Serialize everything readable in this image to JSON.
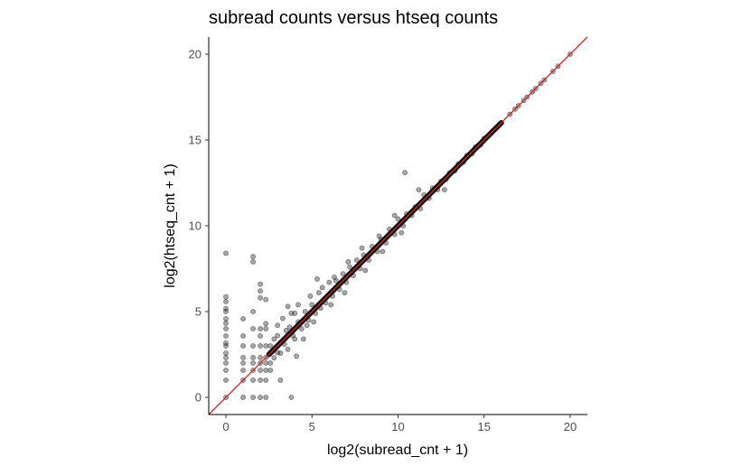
{
  "chart_data": {
    "type": "scatter",
    "title": "subread counts versus htseq counts",
    "xlabel": "log2(subread_cnt + 1)",
    "ylabel": "log2(htseq_cnt + 1)",
    "xlim": [
      -1,
      21
    ],
    "ylim": [
      -1,
      21
    ],
    "xticks": [
      0,
      5,
      10,
      15,
      20
    ],
    "yticks": [
      0,
      5,
      10,
      15,
      20
    ],
    "grid": false,
    "point_color": "#000000",
    "point_opacity": 0.35,
    "reference_line": {
      "slope": 1,
      "intercept": 0,
      "color": "#d62728"
    },
    "points": [
      [
        0,
        0
      ],
      [
        0,
        1
      ],
      [
        0,
        1.58
      ],
      [
        0,
        2
      ],
      [
        0,
        2.32
      ],
      [
        0,
        2.58
      ],
      [
        0,
        3
      ],
      [
        0,
        3.17
      ],
      [
        0,
        3.58
      ],
      [
        0,
        4
      ],
      [
        0,
        4.32
      ],
      [
        0,
        4.58
      ],
      [
        0,
        5
      ],
      [
        0,
        5.17
      ],
      [
        0,
        5.58
      ],
      [
        0,
        5.86
      ],
      [
        0,
        8.4
      ],
      [
        1,
        0
      ],
      [
        1,
        1
      ],
      [
        1,
        1.58
      ],
      [
        1,
        2
      ],
      [
        1,
        2.32
      ],
      [
        1,
        3
      ],
      [
        1,
        3.58
      ],
      [
        1,
        4.58
      ],
      [
        1.58,
        0
      ],
      [
        1.58,
        1
      ],
      [
        1.58,
        1.58
      ],
      [
        1.58,
        2
      ],
      [
        1.58,
        2.32
      ],
      [
        1.58,
        3
      ],
      [
        1.58,
        4
      ],
      [
        1.58,
        8.2
      ],
      [
        1.58,
        7.9
      ],
      [
        1.58,
        5
      ],
      [
        2,
        0
      ],
      [
        2,
        1
      ],
      [
        2,
        1.58
      ],
      [
        2,
        2
      ],
      [
        2,
        2.32
      ],
      [
        2,
        3
      ],
      [
        2,
        3.58
      ],
      [
        2,
        4
      ],
      [
        2,
        6.2
      ],
      [
        2,
        6.6
      ],
      [
        2,
        5.8
      ],
      [
        2.32,
        0
      ],
      [
        2.32,
        1
      ],
      [
        2.32,
        1.58
      ],
      [
        2.32,
        2
      ],
      [
        2.32,
        2.32
      ],
      [
        2.32,
        3
      ],
      [
        2.32,
        4
      ],
      [
        2.32,
        5.7
      ],
      [
        2.32,
        4.3
      ],
      [
        2.58,
        1.58
      ],
      [
        2.58,
        2
      ],
      [
        2.58,
        2.58
      ],
      [
        2.58,
        3
      ],
      [
        2.8,
        2.3
      ],
      [
        2.8,
        3.4
      ],
      [
        3,
        2.6
      ],
      [
        3,
        3
      ],
      [
        3,
        3.6
      ],
      [
        3,
        4.2
      ],
      [
        3.17,
        1
      ],
      [
        3.17,
        2.58
      ],
      [
        3.17,
        3.2
      ],
      [
        3.3,
        4.6
      ],
      [
        3.4,
        3.1
      ],
      [
        3.5,
        3.9
      ],
      [
        3.6,
        2.8
      ],
      [
        3.7,
        4.1
      ],
      [
        3.9,
        3.6
      ],
      [
        4,
        3.4
      ],
      [
        4,
        4.9
      ],
      [
        3.8,
        0
      ],
      [
        4.1,
        2.4
      ],
      [
        4.2,
        4.4
      ],
      [
        4.4,
        4
      ],
      [
        4.6,
        5
      ],
      [
        4.8,
        4.5
      ],
      [
        5,
        5.4
      ],
      [
        5.2,
        4.9
      ],
      [
        5.4,
        6.1
      ],
      [
        5.5,
        5.2
      ],
      [
        5.8,
        5.5
      ],
      [
        6,
        6.7
      ],
      [
        6.2,
        5.9
      ],
      [
        6.4,
        6.8
      ],
      [
        6.6,
        6.3
      ],
      [
        6.8,
        7.2
      ],
      [
        7,
        6.7
      ],
      [
        7.2,
        7.6
      ],
      [
        7.4,
        7.1
      ],
      [
        7.6,
        8
      ],
      [
        7.8,
        7.5
      ],
      [
        8,
        8.3
      ],
      [
        8.3,
        8
      ],
      [
        8.5,
        8.8
      ],
      [
        8.8,
        8.5
      ],
      [
        9,
        9.2
      ],
      [
        9.3,
        9
      ],
      [
        9.5,
        9.8
      ],
      [
        9.8,
        9.5
      ],
      [
        10,
        10.4
      ],
      [
        10.3,
        10
      ],
      [
        10.5,
        10.7
      ],
      [
        10.8,
        10.6
      ],
      [
        11,
        11.1
      ],
      [
        11.3,
        11
      ],
      [
        11.5,
        11.8
      ],
      [
        11.8,
        11.6
      ],
      [
        12,
        12.2
      ],
      [
        12.3,
        12.1
      ],
      [
        12.5,
        12.6
      ],
      [
        12.8,
        12.7
      ],
      [
        13,
        13.1
      ],
      [
        13.3,
        13.2
      ],
      [
        13.5,
        13.6
      ],
      [
        13.8,
        13.7
      ],
      [
        14,
        14.1
      ],
      [
        14.3,
        14.2
      ],
      [
        14.5,
        14.6
      ],
      [
        14.8,
        14.7
      ],
      [
        15,
        15.1
      ],
      [
        15.5,
        15.5
      ],
      [
        16,
        16
      ],
      [
        10.4,
        13.1
      ],
      [
        11.2,
        12.1
      ],
      [
        9.8,
        10.6
      ],
      [
        8.9,
        9.4
      ],
      [
        7.9,
        8.7
      ],
      [
        7.1,
        7.9
      ],
      [
        6.3,
        7.0
      ],
      [
        5.6,
        6.4
      ],
      [
        4.9,
        5.9
      ],
      [
        5.3,
        6.9
      ],
      [
        4.2,
        5.4
      ],
      [
        3.8,
        4.9
      ],
      [
        3.6,
        5.3
      ],
      [
        4.5,
        3.4
      ],
      [
        4.7,
        4.2
      ],
      [
        5.1,
        4.4
      ],
      [
        6.1,
        5.4
      ],
      [
        6.9,
        6.1
      ],
      [
        8.1,
        7.4
      ],
      [
        9.1,
        8.5
      ],
      [
        10.2,
        9.6
      ],
      [
        12.7,
        12.1
      ],
      [
        16.5,
        16.5
      ],
      [
        16.8,
        16.8
      ],
      [
        17,
        17
      ],
      [
        17.3,
        17.3
      ],
      [
        17.5,
        17.5
      ],
      [
        17.8,
        17.8
      ],
      [
        18,
        18
      ],
      [
        18.3,
        18.3
      ],
      [
        18.5,
        18.5
      ],
      [
        19,
        19
      ],
      [
        19.3,
        19.3
      ],
      [
        20,
        20
      ]
    ]
  }
}
